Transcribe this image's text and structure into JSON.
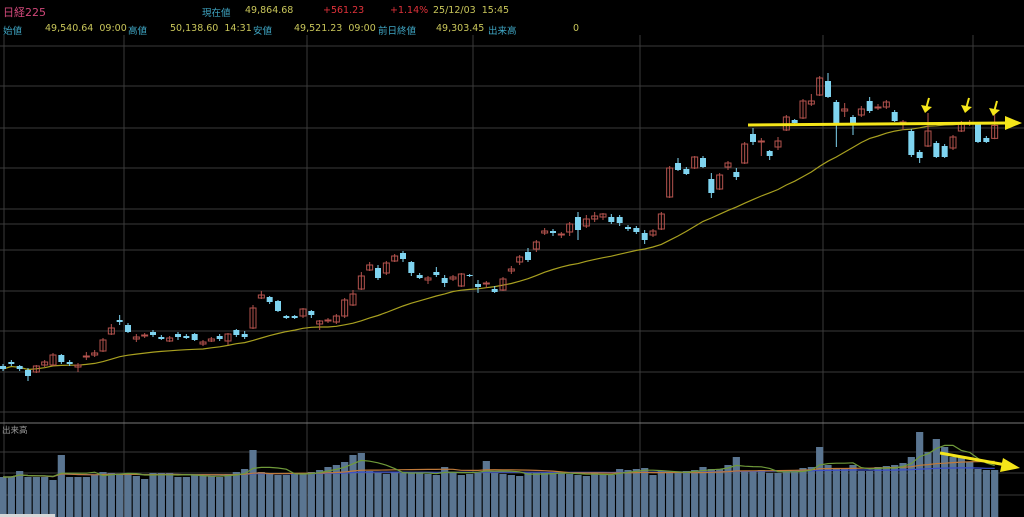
{
  "header": {
    "symbol": "日経225",
    "current_label": "現在値",
    "current_value": "49,864.68",
    "change": "+561.23",
    "change_pct": "+1.14%",
    "datetime": "25/12/03  15:45",
    "open_label": "始値",
    "open_value": "49,540.64  09:00",
    "high_label": "高値",
    "high_value": "50,138.60  14:31",
    "low_label": "安値",
    "low_value": "49,521.23  09:00",
    "prev_close_label": "前日終値",
    "prev_close_value": "49,303.45",
    "volume_label": "出来高",
    "volume_value": "0"
  },
  "colors": {
    "up": "#b5534e",
    "down": "#7fd4f0",
    "ma": "#a8a020",
    "volume": "#5a7591",
    "vol_ma_short": "#6f9a3a",
    "vol_ma_mid": "#c07a3a",
    "vol_ma_long": "#3c4fc8",
    "annotation": "#f5e61a",
    "grid": "#3a3a3a"
  },
  "chart_data": [
    {
      "type": "candlestick",
      "title": "日経225",
      "ylim": [
        42450,
        52125
      ],
      "grid": true,
      "ohlc_fields": [
        "open",
        "close",
        "high",
        "low"
      ],
      "candles": [
        [
          43850,
          43775,
          43900,
          43725
        ],
        [
          43950,
          43900,
          44000,
          43850
        ],
        [
          43850,
          43775,
          43875,
          43725
        ],
        [
          43750,
          43600,
          43800,
          43475
        ],
        [
          43700,
          43850,
          43875,
          43675
        ],
        [
          43875,
          43950,
          44000,
          43825
        ],
        [
          43875,
          44125,
          44175,
          43850
        ],
        [
          44125,
          43950,
          44150,
          43900
        ],
        [
          43950,
          43900,
          44000,
          43850
        ],
        [
          43825,
          43875,
          43925,
          43700
        ],
        [
          44075,
          44100,
          44200,
          44000
        ],
        [
          44125,
          44175,
          44250,
          44075
        ],
        [
          44225,
          44500,
          44550,
          44200
        ],
        [
          44650,
          44800,
          44900,
          44625
        ],
        [
          45000,
          44950,
          45125,
          44875
        ],
        [
          44875,
          44700,
          44925,
          44675
        ],
        [
          44525,
          44575,
          44650,
          44450
        ],
        [
          44600,
          44625,
          44675,
          44550
        ],
        [
          44700,
          44625,
          44750,
          44575
        ],
        [
          44575,
          44525,
          44625,
          44500
        ],
        [
          44475,
          44550,
          44600,
          44450
        ],
        [
          44650,
          44575,
          44700,
          44500
        ],
        [
          44600,
          44550,
          44650,
          44525
        ],
        [
          44650,
          44500,
          44675,
          44475
        ],
        [
          44400,
          44450,
          44500,
          44350
        ],
        [
          44475,
          44525,
          44575,
          44450
        ],
        [
          44600,
          44525,
          44650,
          44475
        ],
        [
          44475,
          44650,
          44675,
          44375
        ],
        [
          44750,
          44625,
          44775,
          44575
        ],
        [
          44650,
          44575,
          44725,
          44525
        ],
        [
          44800,
          45300,
          45375,
          44775
        ],
        [
          45550,
          45625,
          45725,
          45525
        ],
        [
          45575,
          45450,
          45600,
          45400
        ],
        [
          45475,
          45225,
          45500,
          45200
        ],
        [
          45100,
          45050,
          45125,
          45025
        ],
        [
          45100,
          45050,
          45125,
          45025
        ],
        [
          45100,
          45275,
          45300,
          45050
        ],
        [
          45225,
          45125,
          45250,
          45050
        ],
        [
          44900,
          44975,
          45000,
          44750
        ],
        [
          44975,
          45000,
          45050,
          44925
        ],
        [
          44950,
          45100,
          45150,
          44900
        ],
        [
          45100,
          45500,
          45550,
          45050
        ],
        [
          45375,
          45650,
          45750,
          45350
        ],
        [
          45775,
          46100,
          46200,
          45750
        ],
        [
          46250,
          46375,
          46450,
          46225
        ],
        [
          46300,
          46050,
          46375,
          46000
        ],
        [
          46175,
          46425,
          46475,
          46125
        ],
        [
          46475,
          46600,
          46650,
          46450
        ],
        [
          46675,
          46525,
          46725,
          46450
        ],
        [
          46450,
          46175,
          46475,
          46100
        ],
        [
          46125,
          46050,
          46175,
          46025
        ],
        [
          46000,
          46050,
          46100,
          45900
        ],
        [
          46200,
          46125,
          46325,
          46075
        ],
        [
          46050,
          45925,
          46125,
          45825
        ],
        [
          46025,
          46075,
          46125,
          45975
        ],
        [
          45850,
          46150,
          46175,
          45825
        ],
        [
          46125,
          46100,
          46150,
          46075
        ],
        [
          45900,
          45825,
          46000,
          45675
        ],
        [
          45900,
          45925,
          45975,
          45800
        ],
        [
          45775,
          45700,
          45850,
          45675
        ],
        [
          45750,
          46025,
          46075,
          45725
        ],
        [
          46225,
          46275,
          46350,
          46150
        ],
        [
          46450,
          46575,
          46625,
          46375
        ],
        [
          46700,
          46500,
          46800,
          46450
        ],
        [
          46775,
          46950,
          47000,
          46700
        ],
        [
          47175,
          47225,
          47300,
          47125
        ],
        [
          47225,
          47175,
          47275,
          47100
        ],
        [
          47125,
          47150,
          47200,
          47050
        ],
        [
          47200,
          47400,
          47450,
          47100
        ],
        [
          47575,
          47250,
          47700,
          47000
        ],
        [
          47350,
          47525,
          47625,
          47300
        ],
        [
          47525,
          47600,
          47700,
          47450
        ],
        [
          47575,
          47650,
          47675,
          47500
        ],
        [
          47575,
          47450,
          47650,
          47400
        ],
        [
          47575,
          47425,
          47625,
          47350
        ],
        [
          47325,
          47275,
          47375,
          47225
        ],
        [
          47300,
          47200,
          47350,
          47150
        ],
        [
          47175,
          47000,
          47250,
          46900
        ],
        [
          47125,
          47225,
          47275,
          47075
        ],
        [
          47275,
          47650,
          47700,
          47250
        ],
        [
          48075,
          48800,
          48850,
          48050
        ],
        [
          48925,
          48750,
          49050,
          48725
        ],
        [
          48775,
          48650,
          48825,
          48625
        ],
        [
          48800,
          49075,
          49100,
          48775
        ],
        [
          49050,
          48825,
          49100,
          48800
        ],
        [
          48525,
          48175,
          48675,
          48050
        ],
        [
          48275,
          48625,
          48675,
          48250
        ],
        [
          48825,
          48925,
          48975,
          48750
        ],
        [
          48700,
          48575,
          48800,
          48500
        ],
        [
          48925,
          49400,
          49450,
          48900
        ],
        [
          49650,
          49450,
          49800,
          49375
        ],
        [
          49450,
          49475,
          49550,
          49100
        ],
        [
          49225,
          49100,
          49250,
          49000
        ],
        [
          49325,
          49475,
          49575,
          49250
        ],
        [
          49750,
          50075,
          50125,
          49725
        ],
        [
          50000,
          49925,
          50025,
          49900
        ],
        [
          50050,
          50475,
          50525,
          50025
        ],
        [
          50400,
          50475,
          50650,
          50350
        ],
        [
          50625,
          51050,
          51100,
          50600
        ],
        [
          50975,
          50575,
          51175,
          50550
        ],
        [
          50450,
          49925,
          50500,
          49325
        ],
        [
          50225,
          50275,
          50425,
          50075
        ],
        [
          50075,
          49925,
          50125,
          49625
        ],
        [
          50125,
          50275,
          50350,
          50075
        ],
        [
          50475,
          50225,
          50575,
          50175
        ],
        [
          50300,
          50325,
          50400,
          50250
        ],
        [
          50325,
          50450,
          50500,
          50275
        ],
        [
          50200,
          49975,
          50250,
          49950
        ],
        [
          49925,
          49950,
          50000,
          49750
        ],
        [
          49725,
          49125,
          49775,
          49075
        ],
        [
          49200,
          49050,
          49250,
          48925
        ],
        [
          49350,
          49725,
          50175,
          49325
        ],
        [
          49425,
          49075,
          49475,
          49050
        ],
        [
          49350,
          49075,
          49400,
          49050
        ],
        [
          49300,
          49575,
          49625,
          49250
        ],
        [
          49725,
          49925,
          49975,
          49700
        ],
        [
          49900,
          49925,
          50000,
          49850
        ],
        [
          49900,
          49450,
          49950,
          49425
        ],
        [
          49550,
          49450,
          49600,
          49425
        ],
        [
          49541,
          49865,
          50139,
          49521
        ]
      ],
      "ma_period": 25
    },
    {
      "type": "bar",
      "title": "出来高",
      "ylim": [
        0,
        89
      ],
      "values": [
        40,
        40,
        46,
        40,
        40,
        40,
        37,
        62,
        40,
        40,
        40,
        42,
        45,
        44,
        43,
        44,
        41,
        38,
        44,
        44,
        44,
        40,
        40,
        42,
        41,
        41,
        40,
        43,
        45,
        48,
        67,
        45,
        43,
        42,
        42,
        44,
        44,
        45,
        47,
        50,
        52,
        55,
        62,
        64,
        46,
        44,
        43,
        45,
        44,
        44,
        44,
        43,
        42,
        50,
        45,
        42,
        43,
        44,
        56,
        44,
        43,
        42,
        41,
        44,
        44,
        44,
        44,
        44,
        43,
        42,
        41,
        44,
        43,
        42,
        48,
        47,
        48,
        49,
        42,
        46,
        44,
        45,
        46,
        47,
        50,
        48,
        48,
        52,
        60,
        46,
        46,
        47,
        44,
        44,
        45,
        46,
        49,
        50,
        70,
        52,
        48,
        49,
        52,
        46,
        46,
        50,
        51,
        52,
        54,
        60,
        85,
        65,
        78,
        70,
        60,
        60,
        55,
        48,
        47,
        47
      ],
      "ma_periods": [
        5,
        25,
        75
      ]
    }
  ]
}
